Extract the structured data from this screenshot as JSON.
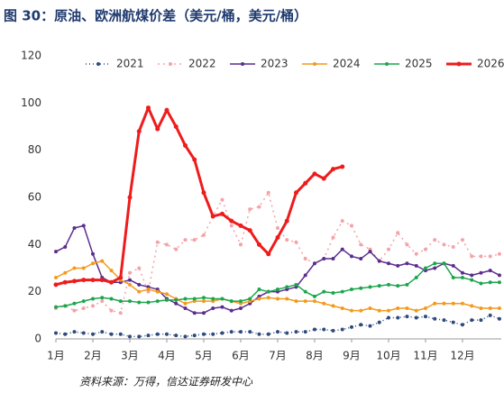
{
  "chart_data": {
    "type": "line",
    "title": "图 30：原油、欧洲航煤价差（美元/桶，美元/桶）",
    "source": "资料来源：万得，信达证券研发中心",
    "x": [
      1,
      1.25,
      1.5,
      1.75,
      2,
      2.25,
      2.5,
      2.75,
      3,
      3.25,
      3.5,
      3.75,
      4,
      4.25,
      4.5,
      4.75,
      5,
      5.25,
      5.5,
      5.75,
      6,
      6.25,
      6.5,
      6.75,
      7,
      7.25,
      7.5,
      7.75,
      8,
      8.25,
      8.5,
      8.75,
      9,
      9.25,
      9.5,
      9.75,
      10,
      10.25,
      10.5,
      10.75,
      11,
      11.25,
      11.5,
      11.75,
      12,
      12.25,
      12.5,
      12.75,
      13
    ],
    "xlim": [
      1,
      13.05
    ],
    "xticks": [
      {
        "value": 1,
        "label": "1月"
      },
      {
        "value": 2,
        "label": "2月"
      },
      {
        "value": 3,
        "label": "3月"
      },
      {
        "value": 4,
        "label": "4月"
      },
      {
        "value": 5,
        "label": "5月"
      },
      {
        "value": 6,
        "label": "6月"
      },
      {
        "value": 7,
        "label": "7月"
      },
      {
        "value": 8,
        "label": "8月"
      },
      {
        "value": 9,
        "label": "9月"
      },
      {
        "value": 10,
        "label": "10月"
      },
      {
        "value": 11,
        "label": "11月"
      },
      {
        "value": 12,
        "label": "12月"
      }
    ],
    "ylim": [
      0,
      120
    ],
    "yticks": [
      0,
      20,
      40,
      60,
      80,
      100,
      120
    ],
    "grid": false,
    "series": [
      {
        "name": "2021",
        "color": "#2e4a7d",
        "dash": "1 3",
        "width": 1.5,
        "values": [
          2.5,
          2,
          3,
          2.5,
          2,
          3,
          2,
          2,
          1,
          1,
          1.5,
          2,
          2,
          1.5,
          1,
          1.5,
          2,
          2,
          2.5,
          3,
          3,
          3,
          2,
          2,
          3,
          2.5,
          3,
          3,
          4,
          4,
          3.5,
          4,
          5,
          6,
          5.5,
          7,
          9,
          9,
          9.5,
          9,
          9.5,
          8.5,
          8,
          7,
          6,
          8,
          8,
          10,
          8.5
        ]
      },
      {
        "name": "2022",
        "color": "#f4a3a8",
        "dash": "2 4",
        "width": 1.5,
        "values": [
          13,
          14,
          12,
          13,
          14,
          16,
          12,
          11,
          28,
          30,
          20,
          41,
          40,
          38,
          42,
          42,
          44,
          52,
          59,
          48,
          40,
          55,
          56,
          62,
          47,
          42,
          41,
          34,
          32,
          34,
          43,
          50,
          48,
          40,
          38,
          33,
          38,
          45,
          40,
          36,
          38,
          42,
          40,
          39,
          42,
          35,
          35,
          35,
          36
        ]
      },
      {
        "name": "2023",
        "color": "#5b2d8e",
        "dash": "",
        "width": 1.5,
        "values": [
          37,
          39,
          47,
          48,
          36,
          26,
          24,
          24,
          25,
          23,
          22,
          21,
          17,
          15,
          13,
          11,
          11,
          13,
          13.5,
          12,
          13,
          15,
          18,
          20,
          20,
          21,
          22,
          27,
          32,
          34,
          34,
          38,
          35,
          34,
          37,
          33,
          32,
          31,
          32,
          31,
          29,
          30,
          32,
          31,
          28,
          27,
          28,
          29,
          27
        ]
      },
      {
        "name": "2024",
        "color": "#f39a1e",
        "dash": "",
        "width": 1.5,
        "values": [
          26,
          28,
          30,
          30,
          32,
          33,
          29,
          25,
          23,
          20,
          21,
          20,
          19,
          17,
          15,
          16,
          16,
          16,
          17,
          16,
          15,
          16,
          17,
          17.5,
          17,
          17,
          16,
          16,
          16,
          15,
          14,
          13,
          12,
          12,
          13,
          12,
          12,
          13,
          13,
          12,
          13,
          15,
          15,
          15,
          15,
          14,
          13,
          13,
          13
        ]
      },
      {
        "name": "2025",
        "color": "#1ca64c",
        "dash": "",
        "width": 1.5,
        "values": [
          13.5,
          14,
          15,
          16,
          17,
          17.5,
          17,
          16,
          16,
          15.5,
          15.5,
          16,
          16.5,
          16.5,
          17,
          17,
          17.5,
          17,
          17,
          16,
          16,
          17,
          21,
          20,
          21,
          22,
          23,
          20,
          18,
          20,
          19.5,
          20,
          21,
          21.5,
          22,
          22.5,
          23,
          22.5,
          23,
          26,
          30,
          32,
          32,
          26,
          26,
          25,
          23.5,
          24,
          24
        ]
      },
      {
        "name": "2026",
        "color": "#ee1c1c",
        "dash": "",
        "width": 3,
        "values": [
          23,
          24,
          24.5,
          25,
          25,
          25,
          24,
          26,
          60,
          88,
          98,
          89,
          97,
          90,
          82,
          76,
          62,
          52,
          53,
          50,
          48,
          46,
          40,
          36,
          43,
          50,
          62,
          66,
          70,
          68,
          72,
          73,
          null,
          null,
          null,
          null,
          null,
          null,
          null,
          null,
          null,
          null,
          null,
          null,
          null,
          null,
          null,
          null,
          null
        ]
      }
    ]
  }
}
